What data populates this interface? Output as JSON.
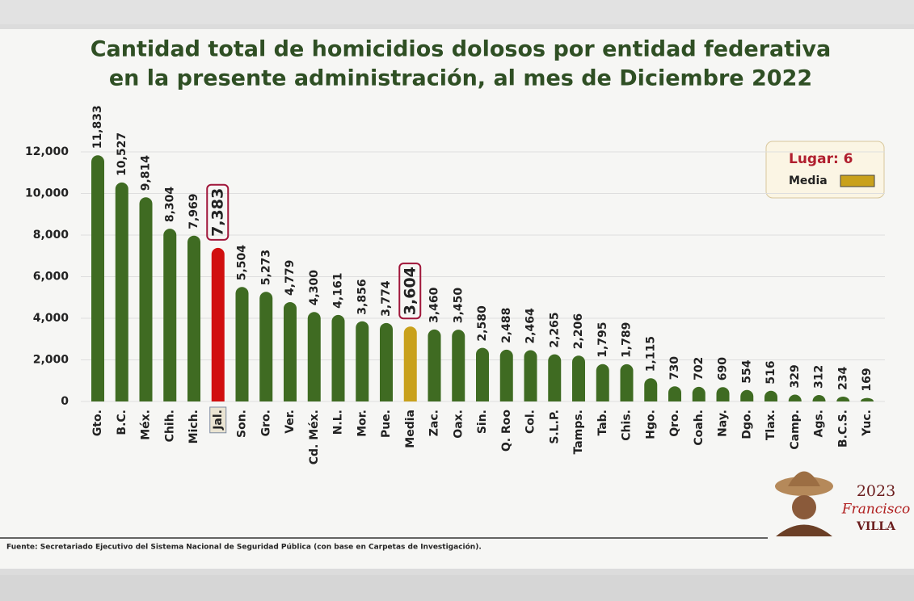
{
  "chart_data": {
    "type": "bar",
    "title": [
      "Cantidad total de homicidios dolosos por entidad federativa",
      "en la presente administración, al mes de Diciembre 2022"
    ],
    "categories": [
      "Gto.",
      "B.C.",
      "Méx.",
      "Chih.",
      "Mich.",
      "Jal.",
      "Son.",
      "Gro.",
      "Ver.",
      "Cd. Méx.",
      "N.L.",
      "Mor.",
      "Pue.",
      "Media",
      "Zac.",
      "Oax.",
      "Sin.",
      "Q. Roo",
      "Col.",
      "S.L.P.",
      "Tamps.",
      "Tab.",
      "Chis.",
      "Hgo.",
      "Qro.",
      "Coah.",
      "Nay.",
      "Dgo.",
      "Tlax.",
      "Camp.",
      "Ags.",
      "B.C.S.",
      "Yuc."
    ],
    "values": [
      11833,
      10527,
      9814,
      8304,
      7969,
      7383,
      5504,
      5273,
      4779,
      4300,
      4161,
      3856,
      3774,
      3604,
      3460,
      3450,
      2580,
      2488,
      2464,
      2265,
      2206,
      1795,
      1789,
      1115,
      730,
      702,
      690,
      554,
      516,
      329,
      312,
      234,
      169
    ],
    "value_labels": [
      "11,833",
      "10,527",
      "9,814",
      "8,304",
      "7,969",
      "7,383",
      "5,504",
      "5,273",
      "4,779",
      "4,300",
      "4,161",
      "3,856",
      "3,774",
      "3,604",
      "3,460",
      "3,450",
      "2,580",
      "2,488",
      "2,464",
      "2,265",
      "2,206",
      "1,795",
      "1,789",
      "1,115",
      "730",
      "702",
      "690",
      "554",
      "516",
      "329",
      "312",
      "234",
      "169"
    ],
    "colors": [
      "#3f6b22",
      "#3f6b22",
      "#3f6b22",
      "#3f6b22",
      "#3f6b22",
      "#d10f0f",
      "#3f6b22",
      "#3f6b22",
      "#3f6b22",
      "#3f6b22",
      "#3f6b22",
      "#3f6b22",
      "#3f6b22",
      "#c9a11c",
      "#3f6b22",
      "#3f6b22",
      "#3f6b22",
      "#3f6b22",
      "#3f6b22",
      "#3f6b22",
      "#3f6b22",
      "#3f6b22",
      "#3f6b22",
      "#3f6b22",
      "#3f6b22",
      "#3f6b22",
      "#3f6b22",
      "#3f6b22",
      "#3f6b22",
      "#3f6b22",
      "#3f6b22",
      "#3f6b22",
      "#3f6b22"
    ],
    "highlight": [
      5,
      13
    ],
    "ylim": [
      0,
      12000
    ],
    "yticks": [
      0,
      {
        "value": 2000,
        "label": "2,000"
      },
      {
        "value": 4000,
        "label": "4,000"
      },
      {
        "value": 6000,
        "label": "6,000"
      },
      {
        "value": 8000,
        "label": "8,000"
      },
      {
        "value": 10000,
        "label": "10,000"
      },
      {
        "value": 12000,
        "label": "12,000"
      }
    ],
    "grid": true,
    "legend": {
      "title": "Lugar: 6",
      "label": "Media",
      "color": "#c9a11c"
    },
    "source": "Fuente: Secretariado Ejecutivo del Sistema Nacional de Seguridad Pública (con base en Carpetas de Investigación).",
    "logo": {
      "year": "2023",
      "name": "Francisco",
      "surname": "VILLA"
    }
  }
}
